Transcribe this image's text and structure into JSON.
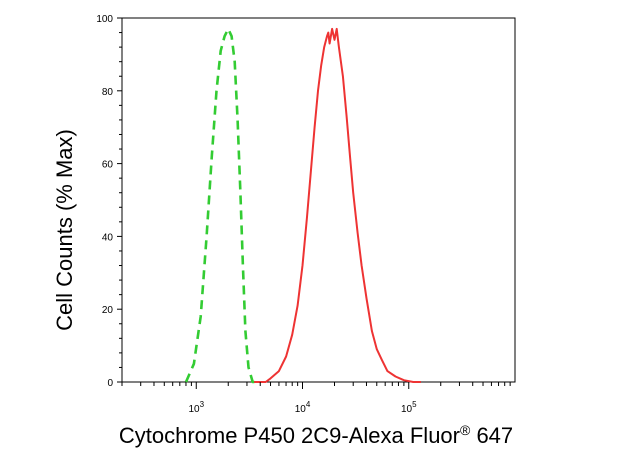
{
  "chart_data": {
    "type": "line",
    "title": "",
    "xlabel": "Cytochrome P450 2C9-Alexa Fluor",
    "xlabel_superscript": "®",
    "xlabel_suffix": " 647",
    "ylabel": "Cell Counts (% Max)",
    "x_scale": "log",
    "xlim": [
      200,
      1000000
    ],
    "ylim": [
      0,
      100
    ],
    "x_ticks": [
      {
        "value": 1000,
        "base": "10",
        "exp": "3"
      },
      {
        "value": 10000,
        "base": "10",
        "exp": "4"
      },
      {
        "value": 100000,
        "base": "10",
        "exp": "5"
      }
    ],
    "y_ticks": [
      "0",
      "20",
      "40",
      "60",
      "80",
      "100"
    ],
    "grid": false,
    "series": [
      {
        "style": "dashed",
        "color": "#33cc33",
        "points": [
          [
            800,
            0
          ],
          [
            950,
            5
          ],
          [
            1100,
            18
          ],
          [
            1250,
            40
          ],
          [
            1400,
            62
          ],
          [
            1550,
            80
          ],
          [
            1700,
            91
          ],
          [
            1850,
            95
          ],
          [
            2000,
            97
          ],
          [
            2150,
            95
          ],
          [
            2300,
            88
          ],
          [
            2450,
            72
          ],
          [
            2600,
            52
          ],
          [
            2750,
            32
          ],
          [
            2900,
            14
          ],
          [
            3100,
            4
          ],
          [
            3400,
            0
          ],
          [
            4000,
            0
          ]
        ]
      },
      {
        "style": "solid",
        "color": "#ee3333",
        "points": [
          [
            3500,
            0
          ],
          [
            4500,
            0
          ],
          [
            5000,
            1
          ],
          [
            6000,
            3
          ],
          [
            7000,
            7
          ],
          [
            8000,
            13
          ],
          [
            9000,
            21
          ],
          [
            10000,
            32
          ],
          [
            11000,
            45
          ],
          [
            12000,
            58
          ],
          [
            13000,
            70
          ],
          [
            14000,
            80
          ],
          [
            15000,
            87
          ],
          [
            16000,
            92
          ],
          [
            17000,
            95
          ],
          [
            17500,
            96
          ],
          [
            18000,
            93
          ],
          [
            19000,
            97
          ],
          [
            20000,
            94
          ],
          [
            21000,
            97
          ],
          [
            22000,
            92
          ],
          [
            24000,
            84
          ],
          [
            26000,
            73
          ],
          [
            28000,
            62
          ],
          [
            30000,
            52
          ],
          [
            33000,
            41
          ],
          [
            36000,
            32
          ],
          [
            40000,
            23
          ],
          [
            45000,
            14
          ],
          [
            50000,
            9
          ],
          [
            56000,
            6
          ],
          [
            63000,
            3
          ],
          [
            75000,
            1.5
          ],
          [
            90000,
            0.5
          ],
          [
            110000,
            0
          ],
          [
            130000,
            0
          ]
        ]
      }
    ]
  }
}
